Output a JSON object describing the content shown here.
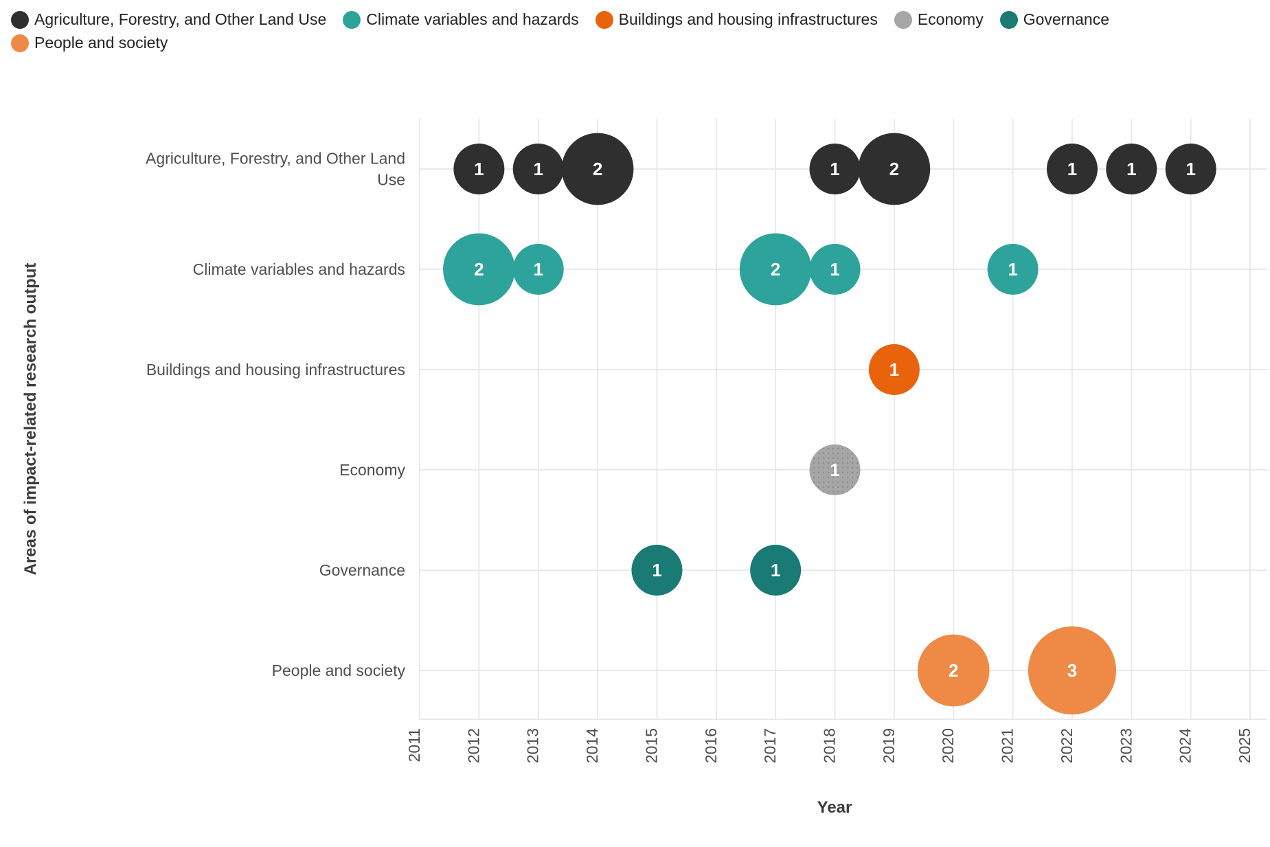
{
  "page": {
    "background": "#ffffff"
  },
  "legend": {
    "position": "top",
    "items": [
      {
        "label": "Agriculture, Forestry, and Other Land Use",
        "color": "#2f2f2f"
      },
      {
        "label": "Climate variables and hazards",
        "color": "#2ea39c"
      },
      {
        "label": "Buildings and housing infrastructures",
        "color": "#e8630c"
      },
      {
        "label": "Economy",
        "color": "#a6a6a6"
      },
      {
        "label": "Governance",
        "color": "#1a7a74"
      },
      {
        "label": "People and society",
        "color": "#ee8a45"
      }
    ]
  },
  "chart_data": {
    "type": "scatter",
    "subtype": "bubble",
    "title": "",
    "xlabel": "Year",
    "ylabel": "Areas of impact-related research output",
    "x_ticks": [
      2011,
      2012,
      2013,
      2014,
      2015,
      2016,
      2017,
      2018,
      2019,
      2020,
      2021,
      2022,
      2023,
      2024,
      2025
    ],
    "x_range": [
      2011,
      2025
    ],
    "grid": true,
    "legend_position": "top",
    "bubble_value_labels": "white bold count centered in each bubble",
    "categories": [
      {
        "name": "Agriculture, Forestry, and Other Land Use",
        "label_lines": [
          "Agriculture, Forestry, and Other Land",
          "Use"
        ]
      },
      {
        "name": "Climate variables and hazards",
        "label_lines": [
          "Climate variables and hazards"
        ]
      },
      {
        "name": "Buildings and housing infrastructures",
        "label_lines": [
          "Buildings and housing infrastructures"
        ]
      },
      {
        "name": "Economy",
        "label_lines": [
          "Economy"
        ]
      },
      {
        "name": "Governance",
        "label_lines": [
          "Governance"
        ]
      },
      {
        "name": "People and society",
        "label_lines": [
          "People and society"
        ]
      }
    ],
    "series": [
      {
        "name": "Agriculture, Forestry, and Other Land Use",
        "color": "#2f2f2f",
        "texture": "solid",
        "points": [
          {
            "year": 2012,
            "count": 1
          },
          {
            "year": 2013,
            "count": 1
          },
          {
            "year": 2014,
            "count": 2
          },
          {
            "year": 2018,
            "count": 1
          },
          {
            "year": 2019,
            "count": 2
          },
          {
            "year": 2022,
            "count": 1
          },
          {
            "year": 2023,
            "count": 1
          },
          {
            "year": 2024,
            "count": 1
          }
        ]
      },
      {
        "name": "Climate variables and hazards",
        "color": "#2ea39c",
        "texture": "solid",
        "points": [
          {
            "year": 2012,
            "count": 2
          },
          {
            "year": 2013,
            "count": 1
          },
          {
            "year": 2017,
            "count": 2
          },
          {
            "year": 2018,
            "count": 1
          },
          {
            "year": 2021,
            "count": 1
          }
        ]
      },
      {
        "name": "Buildings and housing infrastructures",
        "color": "#e8630c",
        "texture": "solid",
        "points": [
          {
            "year": 2019,
            "count": 1
          }
        ]
      },
      {
        "name": "Economy",
        "color": "#a6a6a6",
        "texture": "dots",
        "points": [
          {
            "year": 2018,
            "count": 1
          }
        ]
      },
      {
        "name": "Governance",
        "color": "#1a7a74",
        "texture": "solid",
        "points": [
          {
            "year": 2015,
            "count": 1
          },
          {
            "year": 2017,
            "count": 1
          }
        ]
      },
      {
        "name": "People and society",
        "color": "#ee8a45",
        "texture": "solid",
        "points": [
          {
            "year": 2020,
            "count": 2
          },
          {
            "year": 2022,
            "count": 3
          }
        ]
      }
    ]
  }
}
